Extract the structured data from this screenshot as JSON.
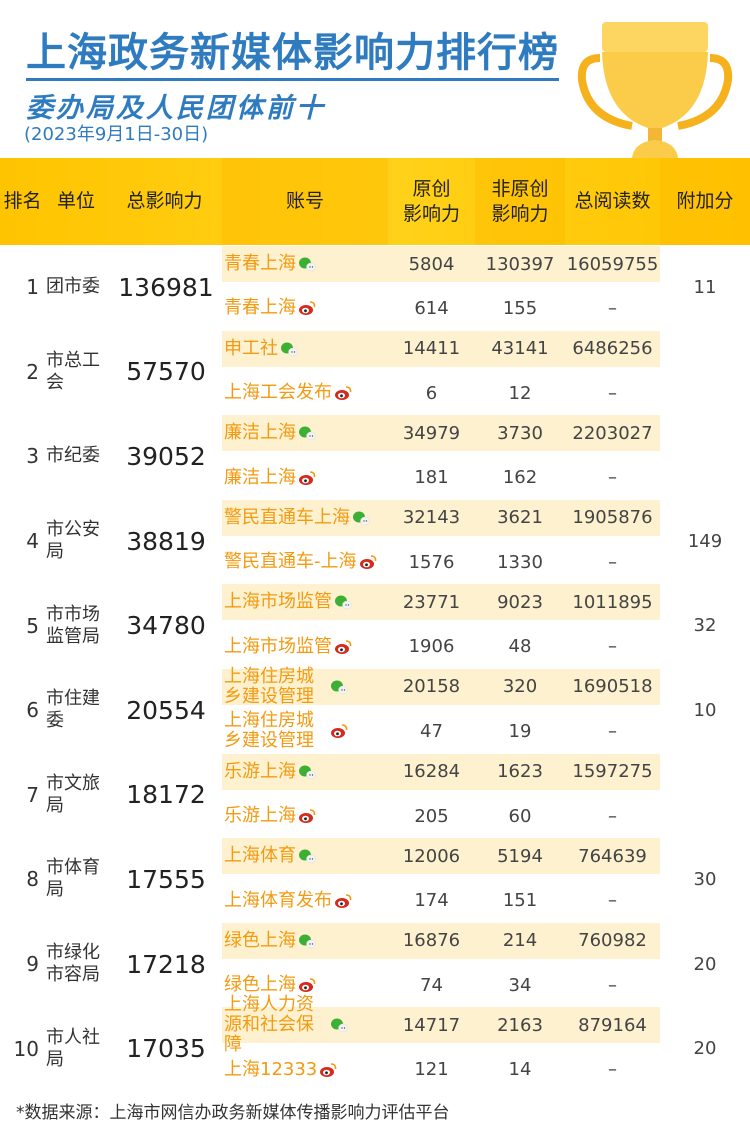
{
  "header": {
    "title": "上海政务新媒体影响力排行榜",
    "subtitle": "委办局及人民团体前十",
    "date_range": "(2023年9月1日-30日)"
  },
  "columns": [
    "排名",
    "单位",
    "总影响力",
    "账号",
    "原创\n影响力",
    "非原创\n影响力",
    "总阅读数",
    "附加分"
  ],
  "colors": {
    "title": "#2f7bc0",
    "header_band": "#ffc400",
    "account_text": "#f39a10",
    "wechat_row_bg": "#fdf1cf",
    "wechat_icon": "#3cb034",
    "weibo_icon": "#d52b1e"
  },
  "rows": [
    {
      "rank": "1",
      "unit": "团市委",
      "total": "136981",
      "bonus": "11",
      "accounts": [
        {
          "name": "青春上海",
          "platform": "wechat-icon",
          "original": "5804",
          "non_original": "130397",
          "reads": "16059755"
        },
        {
          "name": "青春上海",
          "platform": "weibo-icon",
          "original": "614",
          "non_original": "155",
          "reads": "–"
        }
      ]
    },
    {
      "rank": "2",
      "unit": "市总工会",
      "total": "57570",
      "bonus": "",
      "accounts": [
        {
          "name": "申工社",
          "platform": "wechat-icon",
          "original": "14411",
          "non_original": "43141",
          "reads": "6486256"
        },
        {
          "name": "上海工会发布",
          "platform": "weibo-icon",
          "original": "6",
          "non_original": "12",
          "reads": "–"
        }
      ]
    },
    {
      "rank": "3",
      "unit": "市纪委",
      "total": "39052",
      "bonus": "",
      "accounts": [
        {
          "name": "廉洁上海",
          "platform": "wechat-icon",
          "original": "34979",
          "non_original": "3730",
          "reads": "2203027"
        },
        {
          "name": "廉洁上海",
          "platform": "weibo-icon",
          "original": "181",
          "non_original": "162",
          "reads": "–"
        }
      ]
    },
    {
      "rank": "4",
      "unit": "市公安局",
      "total": "38819",
      "bonus": "149",
      "accounts": [
        {
          "name": "警民直通车上海",
          "platform": "wechat-icon",
          "original": "32143",
          "non_original": "3621",
          "reads": "1905876"
        },
        {
          "name": "警民直通车-上海",
          "platform": "weibo-icon",
          "original": "1576",
          "non_original": "1330",
          "reads": "–"
        }
      ]
    },
    {
      "rank": "5",
      "unit": "市市场监管局",
      "total": "34780",
      "bonus": "32",
      "accounts": [
        {
          "name": "上海市场监管",
          "platform": "wechat-icon",
          "original": "23771",
          "non_original": "9023",
          "reads": "1011895"
        },
        {
          "name": "上海市场监管",
          "platform": "weibo-icon",
          "original": "1906",
          "non_original": "48",
          "reads": "–"
        }
      ]
    },
    {
      "rank": "6",
      "unit": "市住建委",
      "total": "20554",
      "bonus": "10",
      "accounts": [
        {
          "name": "上海住房城乡建设管理",
          "platform": "wechat-icon",
          "original": "20158",
          "non_original": "320",
          "reads": "1690518"
        },
        {
          "name": "上海住房城乡建设管理",
          "platform": "weibo-icon",
          "original": "47",
          "non_original": "19",
          "reads": "–"
        }
      ]
    },
    {
      "rank": "7",
      "unit": "市文旅局",
      "total": "18172",
      "bonus": "",
      "accounts": [
        {
          "name": "乐游上海",
          "platform": "wechat-icon",
          "original": "16284",
          "non_original": "1623",
          "reads": "1597275"
        },
        {
          "name": "乐游上海",
          "platform": "weibo-icon",
          "original": "205",
          "non_original": "60",
          "reads": "–"
        }
      ]
    },
    {
      "rank": "8",
      "unit": "市体育局",
      "total": "17555",
      "bonus": "30",
      "accounts": [
        {
          "name": "上海体育",
          "platform": "wechat-icon",
          "original": "12006",
          "non_original": "5194",
          "reads": "764639"
        },
        {
          "name": "上海体育发布",
          "platform": "weibo-icon",
          "original": "174",
          "non_original": "151",
          "reads": "–"
        }
      ]
    },
    {
      "rank": "9",
      "unit": "市绿化市容局",
      "total": "17218",
      "bonus": "20",
      "accounts": [
        {
          "name": "绿色上海",
          "platform": "wechat-icon",
          "original": "16876",
          "non_original": "214",
          "reads": "760982"
        },
        {
          "name": "绿色上海",
          "platform": "weibo-icon",
          "original": "74",
          "non_original": "34",
          "reads": "–"
        }
      ]
    },
    {
      "rank": "10",
      "unit": "市人社局",
      "total": "17035",
      "bonus": "20",
      "accounts": [
        {
          "name": "上海人力资源和社会保障",
          "platform": "wechat-icon",
          "original": "14717",
          "non_original": "2163",
          "reads": "879164"
        },
        {
          "name": "上海12333",
          "platform": "weibo-icon",
          "original": "121",
          "non_original": "14",
          "reads": "–"
        }
      ]
    }
  ],
  "footer": "*数据来源：上海市网信办政务新媒体传播影响力评估平台"
}
